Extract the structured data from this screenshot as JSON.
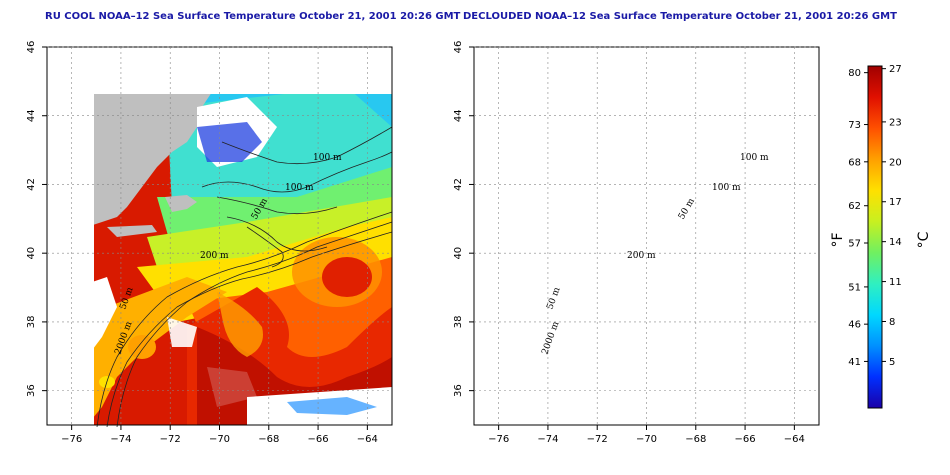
{
  "panels": [
    {
      "id": "left",
      "title": "RU COOL NOAA–12 Sea Surface Temperature October 21, 2001 20:26 GMT",
      "contour_labels": [
        "100 m",
        "100 m",
        "50 m",
        "200 m",
        "50 m",
        "2000 m"
      ]
    },
    {
      "id": "right",
      "title": "DECLOUDED NOAA–12 Sea Surface Temperature October 21, 2001 20:26 GMT",
      "contour_labels": [
        "100 m",
        "100 m",
        "50 m",
        "200 m",
        "50 m",
        "2000 m"
      ]
    }
  ],
  "axes": {
    "x_ticks": [
      "−76",
      "−74",
      "−72",
      "−70",
      "−68",
      "−66",
      "−64"
    ],
    "x_values": [
      -76,
      -74,
      -72,
      -70,
      -68,
      -66,
      -64
    ],
    "x_range": [
      -77,
      -63
    ],
    "y_ticks": [
      "46",
      "44",
      "42",
      "40",
      "38",
      "36"
    ],
    "y_values": [
      46,
      44,
      42,
      40,
      38,
      36
    ],
    "y_range": [
      35,
      46
    ]
  },
  "colorbar": {
    "f_label": "°F",
    "c_label": "°C",
    "f_ticks": [
      {
        "label": "80",
        "c": 26.7
      },
      {
        "label": "73",
        "c": 22.8
      },
      {
        "label": "68",
        "c": 20
      },
      {
        "label": "62",
        "c": 16.7
      },
      {
        "label": "57",
        "c": 13.9
      },
      {
        "label": "51",
        "c": 10.6
      },
      {
        "label": "46",
        "c": 7.8
      },
      {
        "label": "41",
        "c": 5
      }
    ],
    "c_ticks": [
      {
        "label": "27",
        "c": 27
      },
      {
        "label": "23",
        "c": 23
      },
      {
        "label": "20",
        "c": 20
      },
      {
        "label": "17",
        "c": 17
      },
      {
        "label": "14",
        "c": 14
      },
      {
        "label": "11",
        "c": 11
      },
      {
        "label": "8",
        "c": 8
      },
      {
        "label": "5",
        "c": 5
      }
    ],
    "range_c": [
      1.5,
      27.2
    ],
    "colors": [
      "#1a00a8",
      "#0030ff",
      "#0090ff",
      "#00d8ff",
      "#30f0c0",
      "#70f060",
      "#c8f020",
      "#ffe000",
      "#ffa000",
      "#ff5000",
      "#e01000",
      "#a00000"
    ]
  },
  "colors": {
    "land": "#bfbfbf",
    "cloud": "#ffffff",
    "title": "#1a1aa6"
  }
}
